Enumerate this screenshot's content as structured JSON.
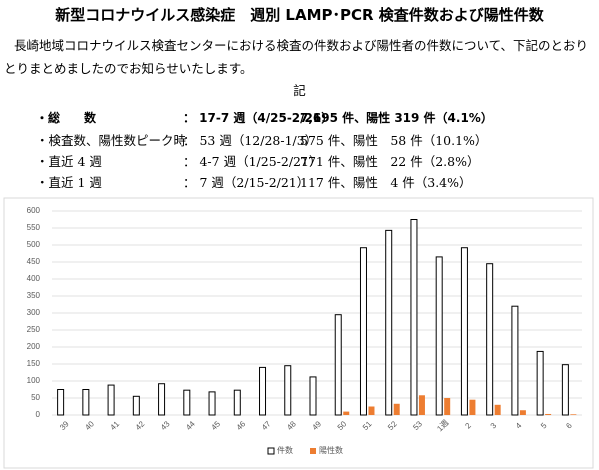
{
  "header": {
    "title": "新型コロナウイルス感染症　週別 LAMP･PCR 検査件数および陽性件数"
  },
  "intro": "長崎地域コロナウイルス検査センターにおける検査の件数および陽性者の件数について、下記のとおりとりまとめましたのでお知らせいたします。",
  "ki": "記",
  "summary": [
    {
      "label": "・総　　数",
      "period": "： 17-7 週（4/25-2/21）",
      "result": "7,695 件、陽性 319 件（4.1%）"
    },
    {
      "label": "・検査数、陽性数ピーク時",
      "period": "： 53 週（12/28-1/3）",
      "result": "575 件、陽性　58 件（10.1%）"
    },
    {
      "label": "・直近 4 週",
      "period": "： 4-7 週（1/25-2/21）",
      "result": "771 件、陽性　22 件（2.8%）"
    },
    {
      "label": "・直近 1 週",
      "period": "： 7 週（2/15-2/21）",
      "result": "117 件、陽性　4 件（3.4%）"
    }
  ],
  "chart_data": {
    "type": "bar",
    "categories": [
      "39",
      "40",
      "41",
      "42",
      "43",
      "44",
      "45",
      "46",
      "47",
      "48",
      "49",
      "50",
      "51",
      "52",
      "53",
      "1週",
      "2",
      "3",
      "4",
      "5",
      "6"
    ],
    "series": [
      {
        "name": "件数",
        "color": "#ffffff",
        "values": [
          75,
          75,
          88,
          55,
          92,
          73,
          68,
          73,
          140,
          145,
          112,
          295,
          492,
          543,
          575,
          465,
          492,
          445,
          320,
          187,
          148
        ]
      },
      {
        "name": "陽性数",
        "color": "#ed7d31",
        "values": [
          0,
          0,
          0,
          0,
          0,
          0,
          0,
          0,
          0,
          0,
          0,
          10,
          25,
          33,
          58,
          50,
          45,
          30,
          14,
          3,
          2
        ]
      }
    ],
    "ylim": [
      0,
      600
    ],
    "yticks": [
      0,
      50,
      100,
      150,
      200,
      250,
      300,
      350,
      400,
      450,
      500,
      550,
      600
    ],
    "grid": true,
    "legend": "bottom"
  }
}
